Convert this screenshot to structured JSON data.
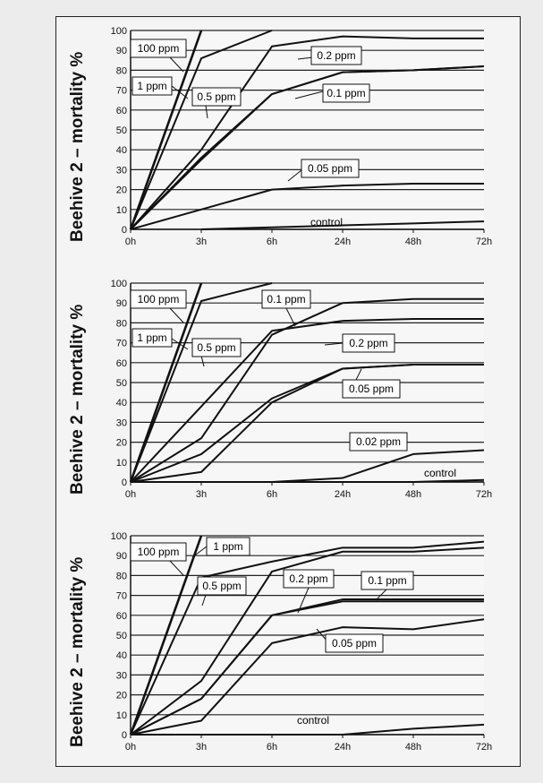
{
  "chart_data": [
    {
      "type": "line",
      "ylabel": "Beehive 2 – mortality %",
      "categories": [
        "0h",
        "3h",
        "6h",
        "24h",
        "48h",
        "72h"
      ],
      "yticks": [
        "0",
        "10",
        "20",
        "30",
        "40",
        "50",
        "60",
        "70",
        "80",
        "90",
        "100"
      ],
      "ylim": [
        0,
        100
      ],
      "grid": true,
      "series": [
        {
          "name": "100 ppm",
          "values": [
            0,
            100,
            null,
            null,
            null,
            null
          ]
        },
        {
          "name": "1 ppm",
          "values": [
            0,
            86,
            100,
            null,
            null,
            null
          ]
        },
        {
          "name": "0.5 ppm",
          "values": [
            0,
            40,
            92,
            97,
            96,
            96
          ]
        },
        {
          "name": "0.2 ppm",
          "values": [
            0,
            36,
            68,
            79,
            80,
            82
          ]
        },
        {
          "name": "0.1 ppm",
          "values": [
            0,
            35,
            68,
            79,
            80,
            82
          ]
        },
        {
          "name": "0.05 ppm",
          "values": [
            0,
            10,
            20,
            22,
            23,
            23
          ]
        },
        {
          "name": "control",
          "values": [
            null,
            0,
            1,
            2,
            3,
            4
          ]
        }
      ]
    },
    {
      "type": "line",
      "ylabel": "Beehive 2 – mortality %",
      "categories": [
        "0h",
        "3h",
        "6h",
        "24h",
        "48h",
        "72h"
      ],
      "yticks": [
        "0",
        "10",
        "20",
        "30",
        "40",
        "50",
        "60",
        "70",
        "80",
        "90",
        "100"
      ],
      "ylim": [
        0,
        100
      ],
      "grid": true,
      "series": [
        {
          "name": "100 ppm",
          "values": [
            0,
            100,
            null,
            null,
            null,
            null
          ]
        },
        {
          "name": "1 ppm",
          "values": [
            0,
            91,
            100,
            null,
            null,
            null
          ]
        },
        {
          "name": "0.5 ppm",
          "values": [
            0,
            38,
            76,
            81,
            82,
            82
          ]
        },
        {
          "name": "0.1 ppm",
          "values": [
            0,
            22,
            74,
            90,
            92,
            92
          ]
        },
        {
          "name": "0.2 ppm",
          "values": [
            0,
            14,
            42,
            57,
            59,
            59
          ]
        },
        {
          "name": "0.05 ppm",
          "values": [
            0,
            5,
            40,
            57,
            59,
            59
          ]
        },
        {
          "name": "0.02 ppm",
          "values": [
            null,
            null,
            0,
            2,
            14,
            16
          ]
        },
        {
          "name": "control",
          "values": [
            0,
            0,
            0,
            0,
            0,
            1
          ]
        }
      ]
    },
    {
      "type": "line",
      "ylabel": "Beehive 2 – mortality %",
      "categories": [
        "0h",
        "3h",
        "6h",
        "24h",
        "48h",
        "72h"
      ],
      "yticks": [
        "0",
        "10",
        "20",
        "30",
        "40",
        "50",
        "60",
        "70",
        "80",
        "90",
        "100"
      ],
      "ylim": [
        0,
        100
      ],
      "grid": true,
      "series": [
        {
          "name": "100 ppm",
          "values": [
            0,
            100,
            null,
            null,
            null,
            null
          ]
        },
        {
          "name": "1 ppm",
          "values": [
            0,
            79,
            87,
            94,
            94,
            97
          ]
        },
        {
          "name": "0.5 ppm",
          "values": [
            0,
            27,
            82,
            92,
            92,
            94
          ]
        },
        {
          "name": "0.2 ppm",
          "values": [
            0,
            18,
            60,
            67,
            67,
            67
          ]
        },
        {
          "name": "0.1 ppm",
          "values": [
            0,
            18,
            60,
            68,
            68,
            68
          ]
        },
        {
          "name": "0.05 ppm",
          "values": [
            0,
            7,
            46,
            54,
            53,
            58
          ]
        },
        {
          "name": "control",
          "values": [
            0,
            0,
            0,
            0,
            3,
            5
          ]
        }
      ]
    }
  ],
  "panel_labels": [
    [
      {
        "text": "100 ppm",
        "color": "#000"
      },
      {
        "text": "1 ppm",
        "color": "#000"
      },
      {
        "text": "0.5 ppm",
        "color": "#000"
      },
      {
        "text": "0.2 ppm",
        "color": "#000"
      },
      {
        "text": "0.1 ppm",
        "color": "#000"
      },
      {
        "text": "0.05 ppm",
        "color": "#000"
      },
      {
        "text": "control",
        "color": "#000"
      }
    ],
    [
      {
        "text": "100 ppm",
        "color": "#000"
      },
      {
        "text": "1 ppm",
        "color": "#000"
      },
      {
        "text": "0.5 ppm",
        "color": "#000"
      },
      {
        "text": "0.1 ppm",
        "color": "#000"
      },
      {
        "text": "0.2 ppm",
        "color": "#000"
      },
      {
        "text": "0.05 ppm",
        "color": "#000"
      },
      {
        "text": "0.02 ppm",
        "color": "#000"
      },
      {
        "text": "control",
        "color": "#000"
      }
    ],
    [
      {
        "text": "100 ppm",
        "color": "#000"
      },
      {
        "text": "1 ppm",
        "color": "#000"
      },
      {
        "text": "0.5 ppm",
        "color": "#000"
      },
      {
        "text": "0.2 ppm",
        "color": "#000"
      },
      {
        "text": "0.1 ppm",
        "color": "#000"
      },
      {
        "text": "0.05 ppm",
        "color": "#000"
      },
      {
        "text": "control",
        "color": "#000"
      }
    ]
  ]
}
